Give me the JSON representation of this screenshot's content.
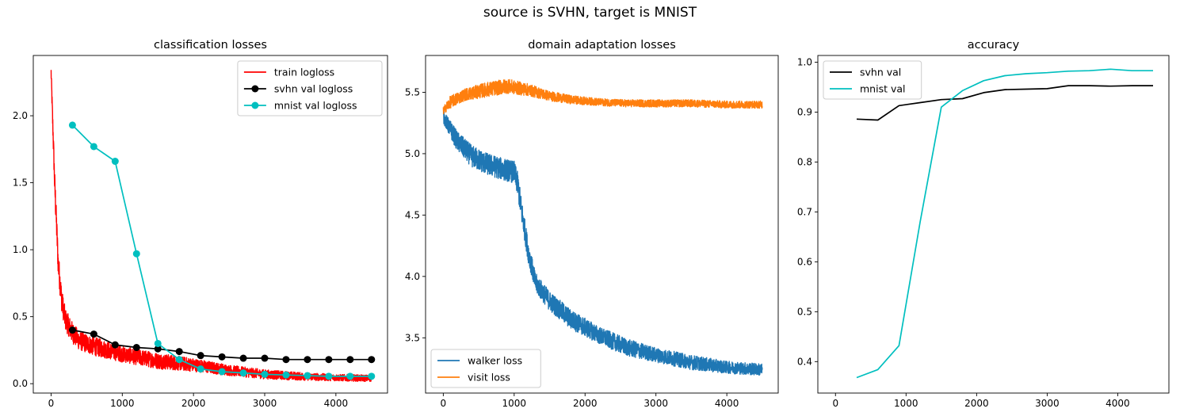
{
  "figure": {
    "suptitle": "source is SVHN, target is MNIST"
  },
  "chart_data": [
    {
      "type": "line",
      "title": "classification losses",
      "xlabel": "",
      "ylabel": "",
      "xlim": [
        -250,
        4725
      ],
      "ylim": [
        -0.07,
        2.45
      ],
      "xticks": [
        0,
        1000,
        2000,
        3000,
        4000
      ],
      "yticks": [
        0.0,
        0.5,
        1.0,
        1.5,
        2.0
      ],
      "ytick_labels": [
        "0.0",
        "0.5",
        "1.0",
        "1.5",
        "2.0"
      ],
      "legend_position": "upper right",
      "series": [
        {
          "name": "train logloss",
          "color": "#ff0000",
          "marker": "none",
          "noisy": true,
          "x": [
            0,
            50,
            100,
            150,
            200,
            300,
            400,
            600,
            1000,
            1500,
            2000,
            2500,
            3000,
            3500,
            4000,
            4500
          ],
          "y": [
            2.33,
            1.5,
            0.9,
            0.62,
            0.48,
            0.38,
            0.32,
            0.28,
            0.22,
            0.17,
            0.14,
            0.1,
            0.07,
            0.055,
            0.045,
            0.04
          ],
          "noise": [
            0.04,
            0.1,
            0.1,
            0.09,
            0.08,
            0.08,
            0.07,
            0.07,
            0.06,
            0.06,
            0.05,
            0.04,
            0.035,
            0.03,
            0.025,
            0.025
          ]
        },
        {
          "name": "svhn val logloss",
          "color": "#000000",
          "marker": "o",
          "x": [
            300,
            600,
            900,
            1200,
            1500,
            1800,
            2100,
            2400,
            2700,
            3000,
            3300,
            3600,
            3900,
            4200,
            4500
          ],
          "y": [
            0.4,
            0.37,
            0.29,
            0.27,
            0.26,
            0.24,
            0.21,
            0.2,
            0.19,
            0.19,
            0.18,
            0.18,
            0.18,
            0.18,
            0.18
          ]
        },
        {
          "name": "mnist val logloss",
          "color": "#00bfbf",
          "marker": "o",
          "x": [
            300,
            600,
            900,
            1200,
            1500,
            1800,
            2100,
            2400,
            2700,
            3000,
            3300,
            3600,
            3900,
            4200,
            4500
          ],
          "y": [
            1.93,
            1.77,
            1.66,
            0.97,
            0.3,
            0.18,
            0.11,
            0.09,
            0.08,
            0.07,
            0.065,
            0.06,
            0.055,
            0.055,
            0.055
          ]
        }
      ]
    },
    {
      "type": "line",
      "title": "domain adaptation losses",
      "xlabel": "",
      "ylabel": "",
      "xlim": [
        -250,
        4725
      ],
      "ylim": [
        3.05,
        5.8
      ],
      "xticks": [
        0,
        1000,
        2000,
        3000,
        4000
      ],
      "yticks": [
        3.5,
        4.0,
        4.5,
        5.0,
        5.5
      ],
      "ytick_labels": [
        "3.5",
        "4.0",
        "4.5",
        "5.0",
        "5.5"
      ],
      "legend_position": "lower left",
      "series": [
        {
          "name": "walker loss",
          "color": "#1f77b4",
          "marker": "none",
          "noisy": true,
          "x": [
            0,
            100,
            200,
            400,
            600,
            800,
            1000,
            1050,
            1100,
            1200,
            1300,
            1500,
            1800,
            2200,
            2600,
            3000,
            3500,
            4000,
            4500
          ],
          "y": [
            5.3,
            5.2,
            5.1,
            4.98,
            4.92,
            4.88,
            4.85,
            4.75,
            4.55,
            4.2,
            3.95,
            3.8,
            3.65,
            3.52,
            3.42,
            3.36,
            3.3,
            3.26,
            3.24
          ],
          "noise": [
            0.05,
            0.07,
            0.08,
            0.09,
            0.09,
            0.09,
            0.09,
            0.1,
            0.1,
            0.09,
            0.08,
            0.08,
            0.08,
            0.07,
            0.07,
            0.06,
            0.06,
            0.05,
            0.05
          ]
        },
        {
          "name": "visit loss",
          "color": "#ff7f0e",
          "marker": "none",
          "noisy": true,
          "x": [
            0,
            100,
            300,
            600,
            900,
            1200,
            1500,
            1800,
            2200,
            2600,
            3000,
            3500,
            4000,
            4500
          ],
          "y": [
            5.35,
            5.42,
            5.48,
            5.52,
            5.55,
            5.52,
            5.47,
            5.44,
            5.42,
            5.41,
            5.41,
            5.41,
            5.4,
            5.4
          ],
          "noise": [
            0.03,
            0.05,
            0.05,
            0.06,
            0.06,
            0.05,
            0.04,
            0.035,
            0.03,
            0.03,
            0.03,
            0.03,
            0.03,
            0.03
          ]
        }
      ]
    },
    {
      "type": "line",
      "title": "accuracy",
      "xlabel": "",
      "ylabel": "",
      "xlim": [
        -250,
        4725
      ],
      "ylim": [
        0.337,
        1.0135
      ],
      "xticks": [
        0,
        1000,
        2000,
        3000,
        4000
      ],
      "yticks": [
        0.4,
        0.5,
        0.6,
        0.7,
        0.8,
        0.9,
        1.0
      ],
      "ytick_labels": [
        "0.4",
        "0.5",
        "0.6",
        "0.7",
        "0.8",
        "0.9",
        "1.0"
      ],
      "legend_position": "upper left",
      "series": [
        {
          "name": "svhn val",
          "color": "#000000",
          "marker": "none",
          "x": [
            300,
            600,
            900,
            1200,
            1500,
            1800,
            2100,
            2400,
            2700,
            3000,
            3300,
            3600,
            3900,
            4200,
            4500
          ],
          "y": [
            0.886,
            0.884,
            0.913,
            0.919,
            0.925,
            0.927,
            0.939,
            0.945,
            0.946,
            0.947,
            0.953,
            0.953,
            0.952,
            0.953,
            0.953
          ]
        },
        {
          "name": "mnist val",
          "color": "#00bfbf",
          "marker": "none",
          "x": [
            300,
            600,
            900,
            1200,
            1500,
            1800,
            2100,
            2400,
            2700,
            3000,
            3300,
            3600,
            3900,
            4200,
            4500
          ],
          "y": [
            0.368,
            0.384,
            0.432,
            0.68,
            0.91,
            0.943,
            0.963,
            0.973,
            0.977,
            0.979,
            0.982,
            0.983,
            0.986,
            0.983,
            0.983
          ]
        }
      ]
    }
  ]
}
